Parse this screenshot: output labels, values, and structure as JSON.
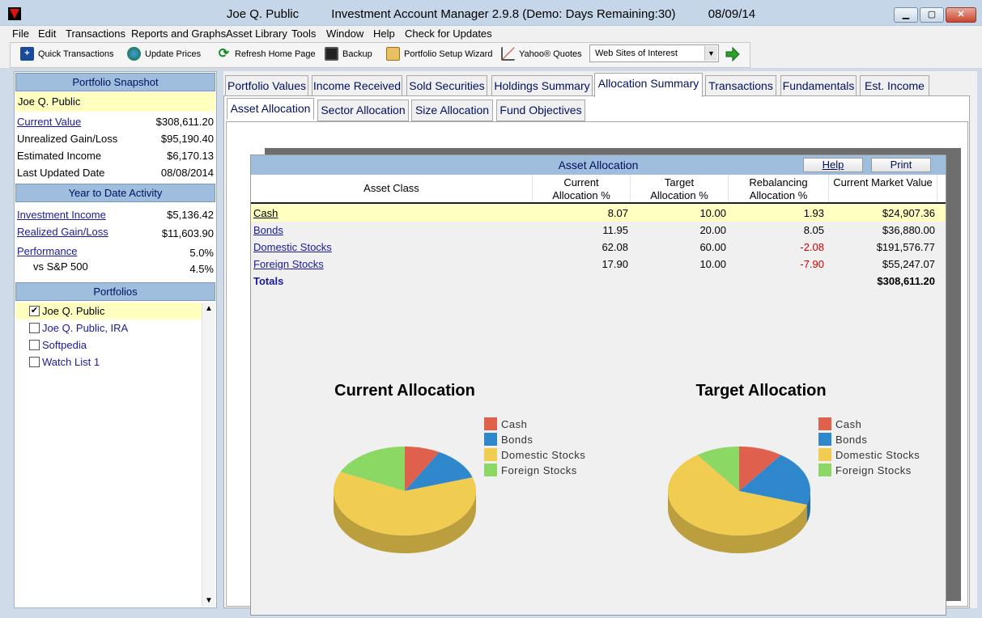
{
  "window": {
    "user": "Joe Q. Public",
    "app": "Investment Account Manager 2.9.8 (Demo: Days Remaining:30)",
    "date": "08/09/14"
  },
  "menu": [
    "File",
    "Edit",
    "Transactions",
    "Reports and Graphs",
    "Asset Library",
    "Tools",
    "Window",
    "Help",
    "Check for Updates"
  ],
  "toolbar": {
    "quick_transactions": "Quick Transactions",
    "update_prices": "Update Prices",
    "refresh_home": "Refresh Home Page",
    "backup": "Backup",
    "portfolio_setup_wizard": "Portfolio Setup Wizard",
    "yahoo_quotes": "Yahoo® Quotes",
    "web_sites": "Web Sites of Interest"
  },
  "snapshot": {
    "header": "Portfolio Snapshot",
    "owner": "Joe Q. Public",
    "current_value_label": "Current Value",
    "current_value": "$308,611.20",
    "unrealized_label": "Unrealized Gain/Loss",
    "unrealized": "$95,190.40",
    "income_label": "Estimated Income",
    "income": "$6,170.13",
    "updated_label": "Last Updated Date",
    "updated": "08/08/2014"
  },
  "ytd": {
    "header": "Year to Date Activity",
    "investment_income_label": "Investment Income",
    "investment_income": "$5,136.42",
    "realized_label": "Realized Gain/Loss",
    "realized": "$11,603.90",
    "performance_label": "Performance",
    "performance": "5.0%",
    "sp500_label": "vs S&P 500",
    "sp500": "4.5%"
  },
  "portfolios": {
    "header": "Portfolios",
    "items": [
      {
        "name": "Joe Q. Public",
        "checked": true
      },
      {
        "name": "Joe Q. Public, IRA",
        "checked": false
      },
      {
        "name": "Softpedia",
        "checked": false
      },
      {
        "name": "Watch List 1",
        "checked": false
      }
    ]
  },
  "tabs": [
    "Portfolio Values",
    "Income Received",
    "Sold Securities",
    "Holdings Summary",
    "Allocation Summary",
    "Transactions",
    "Fundamentals",
    "Est. Income"
  ],
  "active_tab": "Allocation Summary",
  "subtabs": [
    "Asset Allocation",
    "Sector Allocation",
    "Size Allocation",
    "Fund Objectives"
  ],
  "active_subtab": "Asset Allocation",
  "report": {
    "title": "Asset Allocation",
    "help": "Help",
    "print": "Print",
    "columns": {
      "asset_class": "Asset Class",
      "current_l1": "Current",
      "current_l2": "Allocation %",
      "target_l1": "Target",
      "target_l2": "Allocation %",
      "rebal_l1": "Rebalancing",
      "rebal_l2": "Allocation %",
      "market_value": "Current Market Value"
    },
    "rows": [
      {
        "name": "Cash",
        "current": "8.07",
        "target": "10.00",
        "rebal": "1.93",
        "value": "$24,907.36"
      },
      {
        "name": "Bonds",
        "current": "11.95",
        "target": "20.00",
        "rebal": "8.05",
        "value": "$36,880.00"
      },
      {
        "name": "Domestic Stocks",
        "current": "62.08",
        "target": "60.00",
        "rebal": "-2.08",
        "value": "$191,576.77"
      },
      {
        "name": "Foreign Stocks",
        "current": "17.90",
        "target": "10.00",
        "rebal": "-7.90",
        "value": "$55,247.07"
      }
    ],
    "totals_label": "Totals",
    "totals_value": "$308,611.20"
  },
  "chart_data": [
    {
      "type": "pie",
      "title": "Current Allocation",
      "categories": [
        "Cash",
        "Bonds",
        "Domestic Stocks",
        "Foreign Stocks"
      ],
      "values": [
        8.07,
        11.95,
        62.08,
        17.9
      ],
      "colors": [
        "#e0604e",
        "#2f88cc",
        "#f0cc50",
        "#8cd864"
      ]
    },
    {
      "type": "pie",
      "title": "Target Allocation",
      "categories": [
        "Cash",
        "Bonds",
        "Domestic Stocks",
        "Foreign Stocks"
      ],
      "values": [
        10.0,
        20.0,
        60.0,
        10.0
      ],
      "colors": [
        "#e0604e",
        "#2f88cc",
        "#f0cc50",
        "#8cd864"
      ]
    }
  ]
}
